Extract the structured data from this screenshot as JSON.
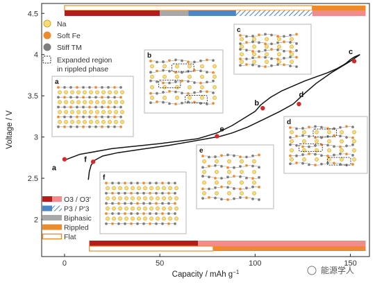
{
  "chart_data": {
    "type": "line",
    "xlabel": "Capacity / mAh g",
    "xlabel_superscript": "−1",
    "ylabel": "Voltage / V",
    "xlim": [
      -12,
      160
    ],
    "ylim": [
      1.55,
      4.62
    ],
    "x_ticks": [
      0,
      50,
      100,
      150
    ],
    "y_ticks": [
      2,
      2.5,
      3,
      3.5,
      4,
      4.5
    ],
    "x_tick_labels": [
      "0",
      "50",
      "100",
      "150"
    ],
    "y_tick_labels": [
      "2",
      "2.5",
      "3",
      "3.5",
      "4",
      "4.5"
    ],
    "charge_curve": {
      "x": [
        0,
        8,
        25,
        50,
        70,
        80,
        88,
        95,
        100,
        103,
        108,
        114,
        120,
        126,
        132,
        138,
        143,
        146,
        148,
        150,
        152,
        154,
        155
      ],
      "y": [
        2.72,
        2.79,
        2.86,
        2.92,
        2.98,
        3.05,
        3.14,
        3.24,
        3.31,
        3.39,
        3.48,
        3.56,
        3.62,
        3.68,
        3.73,
        3.78,
        3.83,
        3.87,
        3.9,
        3.94,
        3.97,
        3.99,
        4.0
      ]
    },
    "discharge_curve": {
      "x": [
        155,
        150,
        140,
        132,
        126,
        120,
        113,
        105,
        96,
        88,
        82,
        70,
        55,
        40,
        28,
        20,
        16,
        14,
        13,
        12.5
      ],
      "y": [
        4.0,
        3.92,
        3.78,
        3.65,
        3.53,
        3.4,
        3.31,
        3.22,
        3.12,
        3.05,
        3.01,
        2.96,
        2.9,
        2.85,
        2.81,
        2.77,
        2.72,
        2.66,
        2.58,
        2.48
      ]
    },
    "labeled_points": [
      {
        "label": "a",
        "x": 0,
        "y": 2.73
      },
      {
        "label": "b",
        "x": 104,
        "y": 3.35
      },
      {
        "label": "c",
        "x": 152,
        "y": 3.92
      },
      {
        "label": "d",
        "x": 123,
        "y": 3.4
      },
      {
        "label": "e",
        "x": 80,
        "y": 3.01
      },
      {
        "label": "f",
        "x": 15,
        "y": 2.7
      }
    ],
    "marker_color": "#d62828",
    "curve_color": "#111111"
  },
  "legend_atoms": [
    {
      "name": "Na",
      "color": "#f7dc7a",
      "stroke": "#d4a531"
    },
    {
      "name": "Soft Fe",
      "color": "#ef8a2a",
      "stroke": "#ef8a2a"
    },
    {
      "name": "Stiff TM",
      "color": "#7d7d7d",
      "stroke": "#7d7d7d"
    }
  ],
  "legend_region_lines": [
    "Expanded region",
    "in rippled phase"
  ],
  "legend_phases": [
    {
      "name": "O3 / O3'",
      "color_a": "#b71c1c",
      "color_b": "#f48a8a",
      "style": "split"
    },
    {
      "name": "P3 / P'3",
      "color_a": "#4a86c8",
      "color_b": "#8fb8e3",
      "style": "hatch"
    },
    {
      "name": "Biphasic",
      "color_a": "#a8a8a8",
      "color_b": "#a8a8a8",
      "style": "solid"
    },
    {
      "name": "Rippled",
      "color_a": "#ef8a2a",
      "color_b": "#ef8a2a",
      "style": "solid"
    },
    {
      "name": "Flat",
      "color_a": "#ffffff",
      "color_b": "#ef8a2a",
      "style": "outline"
    }
  ],
  "top_phase_bar": [
    {
      "phase": "O3",
      "from": 0,
      "to": 50
    },
    {
      "phase": "Biphasic",
      "from": 50,
      "to": 65
    },
    {
      "phase": "P3",
      "from": 65,
      "to": 90
    },
    {
      "phase": "P3h",
      "from": 90,
      "to": 130
    },
    {
      "phase": "O3p",
      "from": 130,
      "to": 158
    }
  ],
  "top_phase_bar_upper": [
    {
      "phase": "Flat",
      "from": 0,
      "to": 130
    },
    {
      "phase": "Rippled",
      "from": 130,
      "to": 158
    }
  ],
  "bottom_phase_bar": [
    {
      "phase": "O3",
      "from": 13,
      "to": 70
    },
    {
      "phase": "O3p",
      "from": 70,
      "to": 158
    }
  ],
  "bottom_phase_bar_lower": [
    {
      "phase": "Flat",
      "from": 13,
      "to": 78
    },
    {
      "phase": "Rippled",
      "from": 78,
      "to": 158
    }
  ],
  "insets": [
    {
      "label": "a",
      "pattern": "flat-na"
    },
    {
      "label": "b",
      "pattern": "rippled-boxes"
    },
    {
      "label": "c",
      "pattern": "rippled"
    },
    {
      "label": "d",
      "pattern": "rippled-boxes"
    },
    {
      "label": "e",
      "pattern": "rippled"
    },
    {
      "label": "f",
      "pattern": "flat-na"
    }
  ],
  "watermark": "能源学人"
}
